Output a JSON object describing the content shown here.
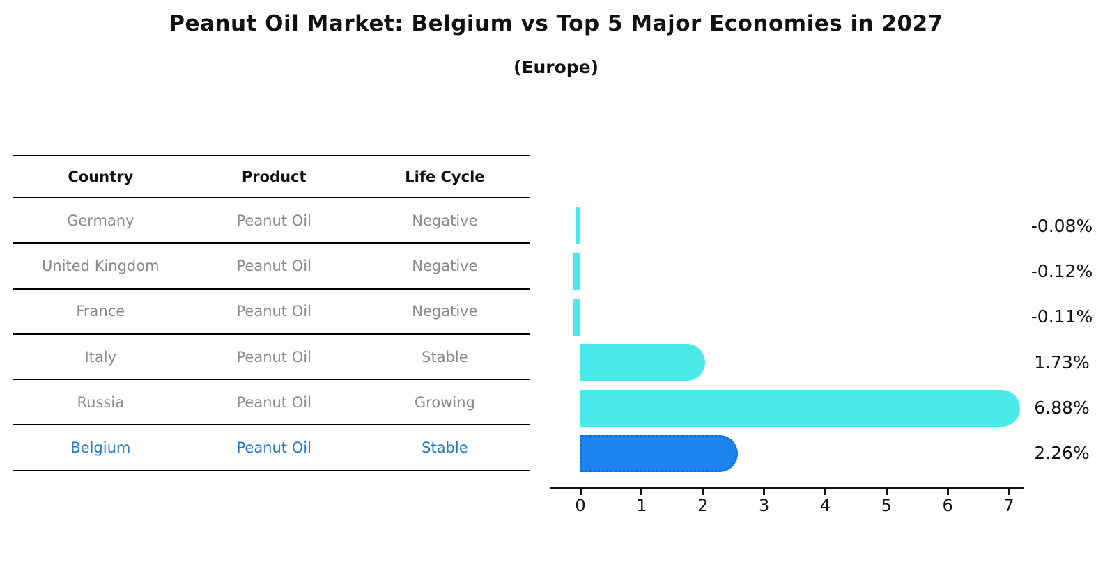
{
  "title": "Peanut Oil Market: Belgium vs Top 5 Major Economies in 2027",
  "subtitle": "(Europe)",
  "table": {
    "columns": [
      "Country",
      "Product",
      "Life Cycle"
    ],
    "rows": [
      {
        "country": "Germany",
        "product": "Peanut Oil",
        "life_cycle": "Negative",
        "highlight": false
      },
      {
        "country": "United Kingdom",
        "product": "Peanut Oil",
        "life_cycle": "Negative",
        "highlight": false
      },
      {
        "country": "France",
        "product": "Peanut Oil",
        "life_cycle": "Negative",
        "highlight": false
      },
      {
        "country": "Italy",
        "product": "Peanut Oil",
        "life_cycle": "Stable",
        "highlight": false
      },
      {
        "country": "Russia",
        "product": "Peanut Oil",
        "life_cycle": "Growing",
        "highlight": false
      },
      {
        "country": "Belgium",
        "product": "Peanut Oil",
        "life_cycle": "Stable",
        "highlight": true
      }
    ]
  },
  "chart_data": {
    "type": "bar",
    "orientation": "horizontal",
    "title": "Peanut Oil Market: Belgium vs Top 5 Major Economies in 2027 (Europe)",
    "categories": [
      "Germany",
      "United Kingdom",
      "France",
      "Italy",
      "Russia",
      "Belgium"
    ],
    "values": [
      -0.08,
      -0.12,
      -0.11,
      1.73,
      6.88,
      2.26
    ],
    "value_labels": [
      "-0.08%",
      "-0.12%",
      "-0.11%",
      "1.73%",
      "6.88%",
      "2.26%"
    ],
    "xticks": [
      "0",
      "1",
      "2",
      "3",
      "4",
      "5",
      "6",
      "7"
    ],
    "xlim": [
      -0.3,
      7.25
    ],
    "grid": false,
    "legend": "none",
    "highlight_index": 5,
    "colors": {
      "bar": "#4BEAEA",
      "highlight_bar": "#1A83EE",
      "highlight_border": "#0F6FD8",
      "highlight_text": "#2878C8",
      "row_text": "#8a8a8a",
      "axis_text": "#111111"
    }
  }
}
